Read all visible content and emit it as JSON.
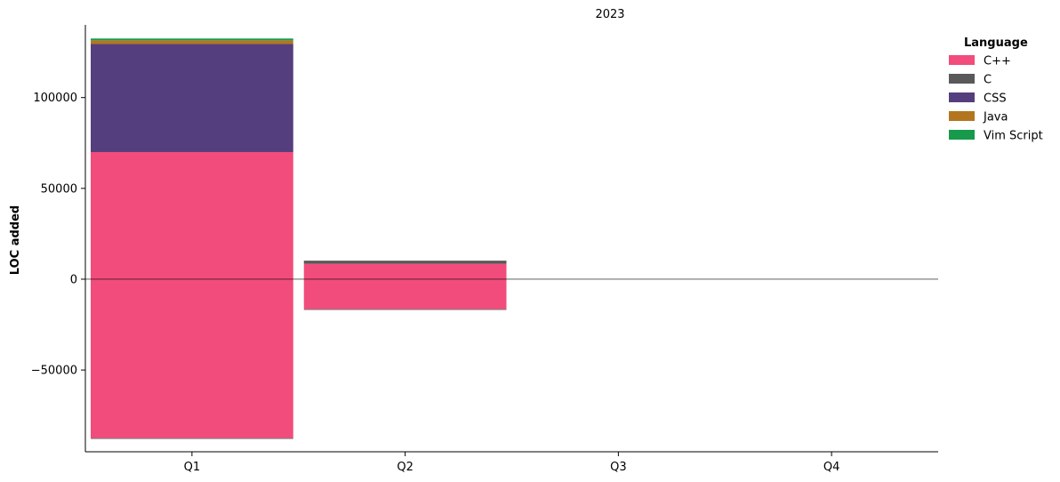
{
  "chart_data": {
    "type": "bar",
    "stacked": true,
    "title": "2023",
    "ylabel": "LOC added",
    "xlabel": "",
    "categories": [
      "Q1",
      "Q2",
      "Q3",
      "Q4"
    ],
    "ylim": [
      -95000,
      140000
    ],
    "yticks": [
      -50000,
      0,
      50000,
      100000
    ],
    "ytick_labels": [
      "−50000",
      "0",
      "50000",
      "100000"
    ],
    "grid": false,
    "zero_line": true,
    "legend": {
      "title": "Language",
      "placement": "top-right-outside"
    },
    "series": [
      {
        "name": "C++",
        "color": "#f24c7c",
        "values": [
          70000,
          8500,
          0,
          0
        ]
      },
      {
        "name": "C",
        "color": "#595959",
        "values": [
          0,
          1700,
          0,
          0
        ]
      },
      {
        "name": "CSS",
        "color": "#553e7d",
        "values": [
          59500,
          0,
          0,
          0
        ]
      },
      {
        "name": "Java",
        "color": "#b3761f",
        "values": [
          2000,
          0,
          0,
          0
        ]
      },
      {
        "name": "Vim Script",
        "color": "#179a4b",
        "values": [
          1000,
          0,
          0,
          0
        ]
      }
    ],
    "negative_series": [
      {
        "name": "C++",
        "color": "#f24c7c",
        "values": [
          -87500,
          -16500,
          0,
          0
        ]
      },
      {
        "name": "C",
        "color": "#595959",
        "values": [
          -400,
          -200,
          0,
          0
        ]
      }
    ]
  }
}
